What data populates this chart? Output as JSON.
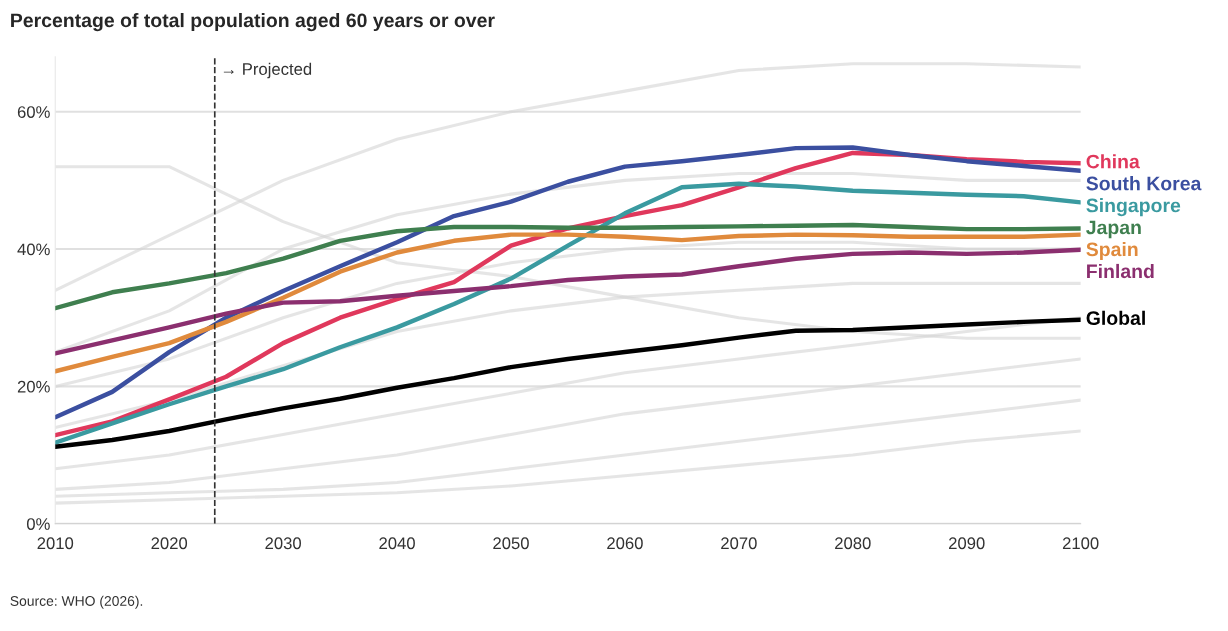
{
  "chart_data": {
    "type": "line",
    "title": "Percentage of total population aged 60 years or over",
    "x": [
      2010,
      2015,
      2020,
      2025,
      2030,
      2035,
      2040,
      2045,
      2050,
      2055,
      2060,
      2065,
      2070,
      2075,
      2080,
      2085,
      2090,
      2095,
      2100
    ],
    "series": [
      {
        "color": "#d4d4d4",
        "x": [
          2010,
          2020,
          2030,
          2040,
          2050,
          2060,
          2070,
          2080,
          2090,
          2100
        ],
        "values": [
          34,
          42,
          50,
          56,
          60,
          63,
          66,
          67,
          67,
          66.5
        ]
      },
      {
        "color": "#d4d4d4",
        "x": [
          2010,
          2020,
          2030,
          2040,
          2050,
          2060,
          2070,
          2080,
          2090,
          2100
        ],
        "values": [
          52,
          52,
          44,
          38,
          36,
          33,
          30,
          28,
          27,
          27
        ]
      },
      {
        "color": "#d4d4d4",
        "x": [
          2010,
          2020,
          2030,
          2040,
          2050,
          2060,
          2070,
          2080,
          2090,
          2100
        ],
        "values": [
          25,
          31,
          40,
          45,
          48,
          50,
          51,
          51,
          50,
          50
        ]
      },
      {
        "color": "#d4d4d4",
        "x": [
          2010,
          2020,
          2030,
          2040,
          2050,
          2060,
          2070,
          2080,
          2090,
          2100
        ],
        "values": [
          20,
          24,
          30,
          35,
          38,
          40,
          41,
          41,
          40,
          40
        ]
      },
      {
        "color": "#d4d4d4",
        "x": [
          2010,
          2020,
          2030,
          2040,
          2050,
          2060,
          2070,
          2080,
          2090,
          2100
        ],
        "values": [
          14,
          18,
          23,
          28,
          31,
          33,
          34,
          35,
          35,
          35
        ]
      },
      {
        "color": "#d4d4d4",
        "x": [
          2010,
          2020,
          2030,
          2040,
          2050,
          2060,
          2070,
          2080,
          2090,
          2100
        ],
        "values": [
          8,
          10,
          13,
          16,
          19,
          22,
          24,
          26,
          28,
          30
        ]
      },
      {
        "color": "#d4d4d4",
        "x": [
          2010,
          2020,
          2030,
          2040,
          2050,
          2060,
          2070,
          2080,
          2090,
          2100
        ],
        "values": [
          5,
          6,
          8,
          10,
          13,
          16,
          18,
          20,
          22,
          24
        ]
      },
      {
        "color": "#d4d4d4",
        "x": [
          2010,
          2020,
          2030,
          2040,
          2050,
          2060,
          2070,
          2080,
          2090,
          2100
        ],
        "values": [
          4,
          4.5,
          5,
          6,
          8,
          10,
          12,
          14,
          16,
          18
        ]
      },
      {
        "color": "#d4d4d4",
        "x": [
          2010,
          2020,
          2030,
          2040,
          2050,
          2060,
          2070,
          2080,
          2090,
          2100
        ],
        "values": [
          3,
          3.5,
          4,
          4.5,
          5.5,
          7,
          8.5,
          10,
          12,
          13.5
        ]
      },
      {
        "name": "China",
        "color": "#e0385c",
        "values": [
          12.9,
          14.9,
          18.1,
          21.4,
          26.3,
          30,
          32.7,
          35.2,
          40.5,
          43,
          44.8,
          46.4,
          49,
          51.8,
          54,
          53.7,
          53.1,
          52.7,
          52.5
        ]
      },
      {
        "name": "South Korea",
        "color": "#3b4fa0",
        "values": [
          15.5,
          19.2,
          25,
          30,
          33.9,
          37.5,
          41,
          44.8,
          46.9,
          49.8,
          52,
          52.8,
          53.7,
          54.7,
          54.8,
          53.7,
          52.8,
          52.1,
          51.4
        ]
      },
      {
        "name": "Singapore",
        "color": "#3a9aa0",
        "values": [
          11.8,
          14.6,
          17.4,
          20,
          22.5,
          25.7,
          28.6,
          32,
          35.7,
          40.5,
          45.2,
          49,
          49.5,
          49.1,
          48.5,
          48.2,
          47.9,
          47.7,
          46.8
        ]
      },
      {
        "name": "Japan",
        "color": "#3f7f4f",
        "values": [
          31.4,
          33.7,
          35,
          36.5,
          38.6,
          41.2,
          42.6,
          43.2,
          43.2,
          43.1,
          43.1,
          43.2,
          43.3,
          43.4,
          43.5,
          43.2,
          42.9,
          42.9,
          43
        ]
      },
      {
        "name": "Spain",
        "color": "#e08a3c",
        "values": [
          22.2,
          24.3,
          26.3,
          29.4,
          32.9,
          36.7,
          39.5,
          41.2,
          42.1,
          42.1,
          41.8,
          41.3,
          41.9,
          42.1,
          42,
          41.8,
          41.8,
          41.8,
          42.1
        ]
      },
      {
        "name": "Finland",
        "color": "#8b2f6f",
        "values": [
          24.8,
          26.7,
          28.6,
          30.6,
          32.2,
          32.4,
          33.2,
          33.9,
          34.6,
          35.5,
          36,
          36.3,
          37.5,
          38.6,
          39.3,
          39.5,
          39.3,
          39.5,
          39.9
        ]
      },
      {
        "name": "Global",
        "color": "#000000",
        "values": [
          11.2,
          12.2,
          13.5,
          15.2,
          16.8,
          18.2,
          19.8,
          21.2,
          22.8,
          24,
          25,
          26,
          27.1,
          28.1,
          28.2,
          28.6,
          29,
          29.4,
          29.7
        ]
      }
    ],
    "xlim": [
      2010,
      2100
    ],
    "xticks": [
      2010,
      2020,
      2030,
      2040,
      2050,
      2060,
      2070,
      2080,
      2090,
      2100
    ],
    "ylim": [
      0,
      68
    ],
    "yticks": [
      {
        "value": 0,
        "label": "0%"
      },
      {
        "value": 20,
        "label": "20%"
      },
      {
        "value": 40,
        "label": "40%"
      },
      {
        "value": 60,
        "label": "60%"
      }
    ],
    "grid": "y",
    "legend": false,
    "marker": "none",
    "line_style": "solid",
    "ref_lines": [
      {
        "axis": "x",
        "value": 2024,
        "label": "→ Projected",
        "color": "#333333",
        "line_style": "dashed"
      }
    ],
    "annotations": [
      "Source: WHO (2026)."
    ]
  }
}
